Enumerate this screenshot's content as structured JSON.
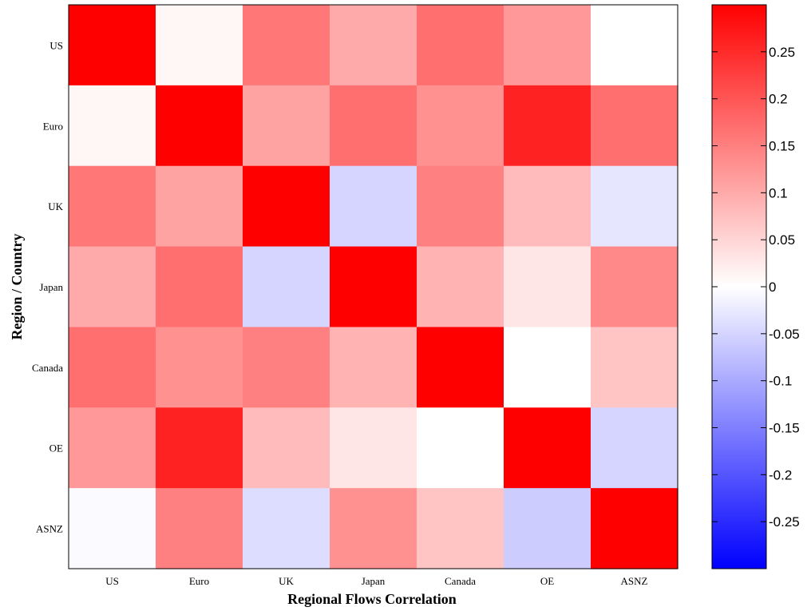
{
  "chart_data": {
    "type": "heatmap",
    "title": "",
    "xlabel": "Regional Flows Correlation",
    "ylabel": "Region / Country",
    "x_categories": [
      "US",
      "Euro",
      "UK",
      "Japan",
      "Canada",
      "OE",
      "ASNZ"
    ],
    "y_categories": [
      "US",
      "Euro",
      "UK",
      "Japan",
      "Canada",
      "OE",
      "ASNZ"
    ],
    "values": [
      [
        0.3,
        0.01,
        0.16,
        0.1,
        0.17,
        0.12,
        0.0
      ],
      [
        0.01,
        0.3,
        0.11,
        0.17,
        0.13,
        0.26,
        0.17
      ],
      [
        0.16,
        0.11,
        0.3,
        -0.05,
        0.15,
        0.08,
        -0.03
      ],
      [
        0.1,
        0.17,
        -0.05,
        0.3,
        0.09,
        0.03,
        0.14
      ],
      [
        0.17,
        0.13,
        0.15,
        0.09,
        0.3,
        0.0,
        0.07
      ],
      [
        0.12,
        0.26,
        0.08,
        0.03,
        0.0,
        0.3,
        -0.05
      ],
      [
        -0.005,
        0.15,
        -0.04,
        0.13,
        0.07,
        -0.06,
        0.3
      ]
    ],
    "colorbar": {
      "min": -0.3,
      "max": 0.3,
      "ticks": [
        0.25,
        0.2,
        0.15,
        0.1,
        0.05,
        0,
        -0.05,
        -0.1,
        -0.15,
        -0.2,
        -0.25
      ],
      "tick_labels": [
        "0.25",
        "0.2",
        "0.15",
        "0.1",
        "0.05",
        "0",
        "-0.05",
        "-0.1",
        "-0.15",
        "-0.2",
        "-0.25"
      ],
      "colors": {
        "low": "#0000ff",
        "mid": "#ffffff",
        "high": "#ff0000"
      }
    },
    "legend": "colorbar-right",
    "grid": false
  }
}
